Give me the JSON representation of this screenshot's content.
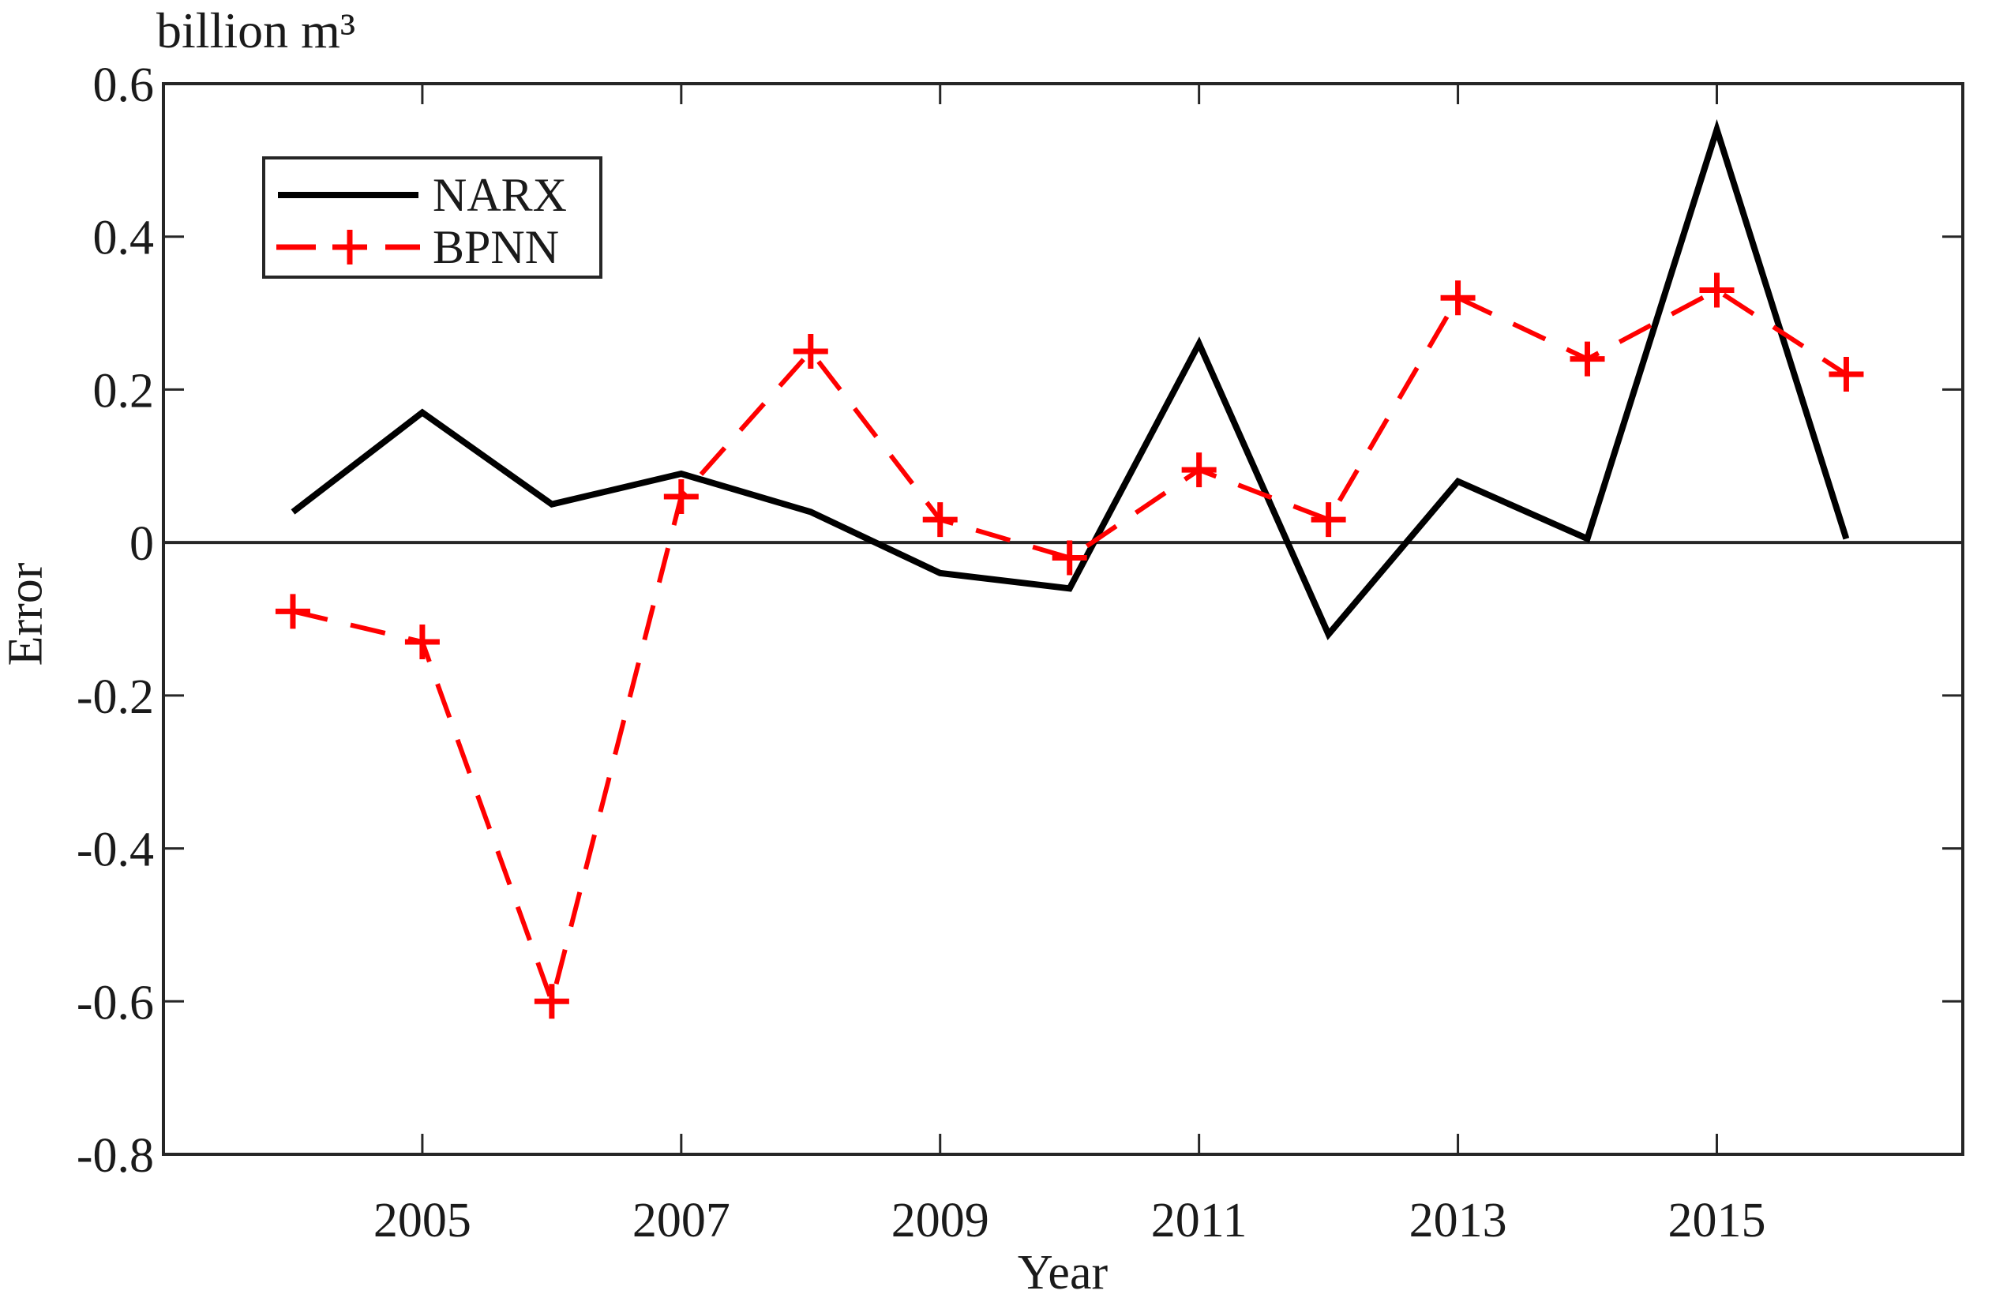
{
  "figure": {
    "title": "billion m³",
    "xlabel": "Year",
    "ylabel": "Error"
  },
  "legend": {
    "position": "top-left",
    "items": [
      {
        "label": "NARX"
      },
      {
        "label": "BPNN"
      }
    ]
  },
  "chart_data": {
    "type": "line",
    "title": "billion m³",
    "xlabel": "Year",
    "ylabel": "Error",
    "x": [
      2004,
      2005,
      2006,
      2007,
      2008,
      2009,
      2010,
      2011,
      2012,
      2013,
      2014,
      2015,
      2016
    ],
    "series": [
      {
        "name": "NARX",
        "color": "#000000",
        "style": "solid",
        "marker": "none",
        "values": [
          0.04,
          0.17,
          0.05,
          0.09,
          0.04,
          -0.04,
          -0.06,
          0.26,
          -0.12,
          0.08,
          0.005,
          0.54,
          0.005
        ]
      },
      {
        "name": "BPNN",
        "color": "#ff0000",
        "style": "dashed",
        "marker": "plus",
        "values": [
          -0.09,
          -0.13,
          -0.6,
          0.06,
          0.25,
          0.03,
          -0.02,
          0.095,
          0.03,
          0.32,
          0.24,
          0.33,
          0.22
        ]
      }
    ],
    "ylim": [
      -0.8,
      0.6
    ],
    "xlim": [
      2003,
      2016.9
    ],
    "yticks": [
      0.6,
      0.4,
      0.2,
      0,
      -0.2,
      -0.4,
      -0.6,
      -0.8
    ],
    "ytick_labels": [
      "0.6",
      "0.4",
      "0.2",
      "0",
      "-0.2",
      "-0.4",
      "-0.6",
      "-0.8"
    ],
    "xticks": [
      2005,
      2007,
      2009,
      2011,
      2013,
      2015
    ],
    "xtick_labels": [
      "2005",
      "2007",
      "2009",
      "2011",
      "2013",
      "2015"
    ],
    "zero_line": true,
    "grid": false,
    "axis_color": "#262626",
    "text_color": "#1a1a1a",
    "legend_position": "top-left"
  }
}
